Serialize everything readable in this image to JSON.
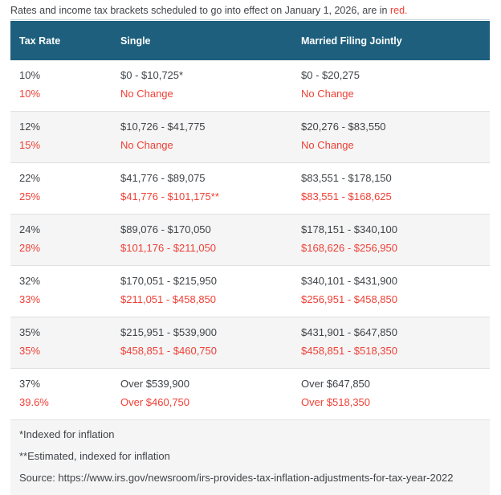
{
  "caption": {
    "text": "Rates and income tax brackets scheduled to go into effect on January 1, 2026, are in ",
    "highlight": "red."
  },
  "table": {
    "headers": [
      "Tax Rate",
      "Single",
      "Married Filing Jointly"
    ],
    "groups": [
      {
        "current": {
          "rate": "10%",
          "single": "$0 - $10,725*",
          "married": "$0 - $20,275"
        },
        "proposed": {
          "rate": "10%",
          "single": "No Change",
          "married": "No Change"
        }
      },
      {
        "current": {
          "rate": "12%",
          "single": "$10,726 - $41,775",
          "married": "$20,276 - $83,550"
        },
        "proposed": {
          "rate": "15%",
          "single": "No Change",
          "married": "No Change"
        }
      },
      {
        "current": {
          "rate": "22%",
          "single": "$41,776 - $89,075",
          "married": "$83,551 - $178,150"
        },
        "proposed": {
          "rate": "25%",
          "single": "$41,776 - $101,175**",
          "married": "$83,551 - $168,625"
        }
      },
      {
        "current": {
          "rate": "24%",
          "single": "$89,076 - $170,050",
          "married": "$178,151 - $340,100"
        },
        "proposed": {
          "rate": "28%",
          "single": "$101,176 - $211,050",
          "married": "$168,626 - $256,950"
        }
      },
      {
        "current": {
          "rate": "32%",
          "single": "$170,051 - $215,950",
          "married": "$340,101 - $431,900"
        },
        "proposed": {
          "rate": "33%",
          "single": "$211,051 - $458,850",
          "married": "$256,951 - $458,850"
        }
      },
      {
        "current": {
          "rate": "35%",
          "single": "$215,951 - $539,900",
          "married": "$431,901 - $647,850"
        },
        "proposed": {
          "rate": "35%",
          "single": "$458,851 - $460,750",
          "married": "$458,851 - $518,350"
        }
      },
      {
        "current": {
          "rate": "37%",
          "single": "Over $539,900",
          "married": "Over $647,850"
        },
        "proposed": {
          "rate": "39.6%",
          "single": "Over $460,750",
          "married": "Over $518,350"
        }
      }
    ],
    "footnotes": [
      "*Indexed for inflation",
      "**Estimated, indexed for inflation"
    ],
    "source": "Source: https://www.irs.gov/newsroom/irs-provides-tax-inflation-adjustments-for-tax-year-2022"
  },
  "colors": {
    "header_bg": "#1D5F7D",
    "red": "#EE4036",
    "stripe_bg": "#F5F5F5",
    "text": "#404448"
  }
}
